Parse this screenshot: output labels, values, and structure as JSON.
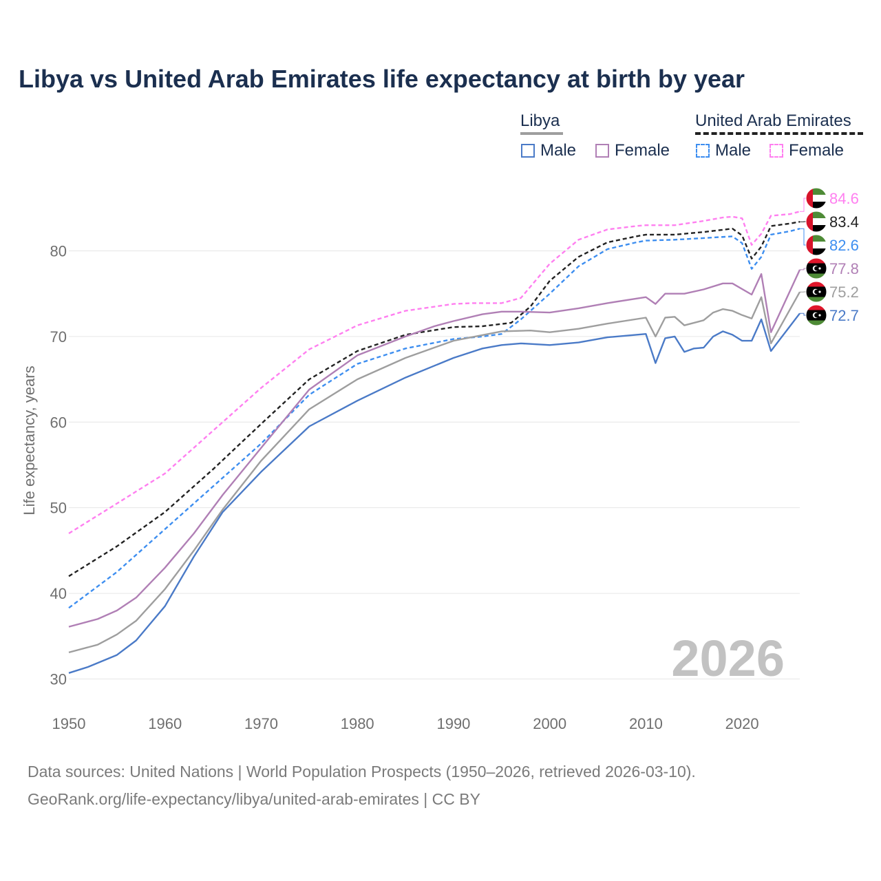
{
  "title": "Libya vs United Arab Emirates life expectancy at birth by year",
  "legend": {
    "group1": "Libya",
    "group2": "United Arab Emirates",
    "male": "Male",
    "female": "Female"
  },
  "year_watermark": "2026",
  "footer": {
    "line1": "Data sources: United Nations | World Population Prospects (1950–2026, retrieved 2026-03-10).",
    "line2": "GeoRank.org/life-expectancy/libya/united-arab-emirates | CC BY"
  },
  "colors": {
    "libya_total": "#9e9e9e",
    "libya_male": "#4a7ac7",
    "libya_female": "#b07fb5",
    "uae_total": "#222222",
    "uae_male": "#3d8ef0",
    "uae_female": "#ff7ff0"
  },
  "chart_data": {
    "type": "line",
    "title": "Libya vs United Arab Emirates life expectancy at birth by year",
    "xlabel": "",
    "ylabel": "Life expectancy, years",
    "xlim": [
      1950,
      2026
    ],
    "ylim": [
      26.5,
      88
    ],
    "xticks": [
      1950,
      1960,
      1970,
      1980,
      1990,
      2000,
      2010,
      2020
    ],
    "yticks": [
      30,
      40,
      50,
      60,
      70,
      80
    ],
    "grid": true,
    "series": [
      {
        "key": "uae_female",
        "name": "United Arab Emirates Female",
        "dashed": true,
        "end_label": "84.6",
        "points": [
          [
            1950,
            47.0
          ],
          [
            1955,
            50.5
          ],
          [
            1960,
            54.0
          ],
          [
            1965,
            59.0
          ],
          [
            1970,
            64.0
          ],
          [
            1975,
            68.5
          ],
          [
            1980,
            71.3
          ],
          [
            1985,
            73.0
          ],
          [
            1990,
            73.8
          ],
          [
            1992,
            73.9
          ],
          [
            1995,
            73.9
          ],
          [
            1997,
            74.5
          ],
          [
            2000,
            78.5
          ],
          [
            2003,
            81.3
          ],
          [
            2006,
            82.5
          ],
          [
            2009,
            82.9
          ],
          [
            2010,
            83.0
          ],
          [
            2013,
            83.0
          ],
          [
            2016,
            83.5
          ],
          [
            2018,
            83.9
          ],
          [
            2019,
            84.0
          ],
          [
            2020,
            83.8
          ],
          [
            2021,
            80.7
          ],
          [
            2022,
            82.0
          ],
          [
            2023,
            84.1
          ],
          [
            2025,
            84.3
          ],
          [
            2026,
            84.6
          ]
        ]
      },
      {
        "key": "uae_total",
        "name": "United Arab Emirates",
        "dashed": true,
        "end_label": "83.4",
        "points": [
          [
            1950,
            42.0
          ],
          [
            1955,
            45.5
          ],
          [
            1960,
            49.5
          ],
          [
            1965,
            54.5
          ],
          [
            1970,
            59.8
          ],
          [
            1975,
            65.0
          ],
          [
            1980,
            68.3
          ],
          [
            1985,
            70.2
          ],
          [
            1990,
            71.1
          ],
          [
            1993,
            71.2
          ],
          [
            1996,
            71.6
          ],
          [
            1998,
            73.5
          ],
          [
            2000,
            76.5
          ],
          [
            2003,
            79.3
          ],
          [
            2006,
            81.0
          ],
          [
            2009,
            81.7
          ],
          [
            2010,
            81.9
          ],
          [
            2013,
            81.9
          ],
          [
            2016,
            82.2
          ],
          [
            2019,
            82.6
          ],
          [
            2020,
            81.8
          ],
          [
            2021,
            79.1
          ],
          [
            2022,
            80.5
          ],
          [
            2023,
            82.9
          ],
          [
            2025,
            83.2
          ],
          [
            2026,
            83.4
          ]
        ]
      },
      {
        "key": "uae_male",
        "name": "United Arab Emirates Male",
        "dashed": true,
        "end_label": "82.6",
        "points": [
          [
            1950,
            38.3
          ],
          [
            1955,
            42.5
          ],
          [
            1960,
            47.5
          ],
          [
            1965,
            52.5
          ],
          [
            1970,
            57.5
          ],
          [
            1975,
            63.2
          ],
          [
            1980,
            66.8
          ],
          [
            1985,
            68.6
          ],
          [
            1990,
            69.7
          ],
          [
            1993,
            70.0
          ],
          [
            1995,
            70.3
          ],
          [
            1997,
            72.0
          ],
          [
            2000,
            75.0
          ],
          [
            2003,
            78.2
          ],
          [
            2006,
            80.2
          ],
          [
            2009,
            81.0
          ],
          [
            2010,
            81.2
          ],
          [
            2013,
            81.3
          ],
          [
            2016,
            81.5
          ],
          [
            2019,
            81.7
          ],
          [
            2020,
            80.9
          ],
          [
            2021,
            77.9
          ],
          [
            2022,
            79.3
          ],
          [
            2023,
            81.9
          ],
          [
            2025,
            82.3
          ],
          [
            2026,
            82.6
          ]
        ]
      },
      {
        "key": "libya_female",
        "name": "Libya Female",
        "dashed": false,
        "end_label": "77.8",
        "points": [
          [
            1950,
            36.1
          ],
          [
            1953,
            37.0
          ],
          [
            1955,
            38.0
          ],
          [
            1957,
            39.5
          ],
          [
            1960,
            43.0
          ],
          [
            1963,
            47.0
          ],
          [
            1966,
            51.5
          ],
          [
            1970,
            57.0
          ],
          [
            1975,
            63.8
          ],
          [
            1980,
            67.8
          ],
          [
            1985,
            70.0
          ],
          [
            1988,
            71.2
          ],
          [
            1990,
            71.8
          ],
          [
            1993,
            72.6
          ],
          [
            1995,
            72.9
          ],
          [
            1997,
            72.9
          ],
          [
            2000,
            72.8
          ],
          [
            2003,
            73.3
          ],
          [
            2006,
            73.9
          ],
          [
            2010,
            74.6
          ],
          [
            2011,
            73.8
          ],
          [
            2012,
            75.0
          ],
          [
            2014,
            75.0
          ],
          [
            2016,
            75.5
          ],
          [
            2018,
            76.2
          ],
          [
            2019,
            76.2
          ],
          [
            2021,
            74.9
          ],
          [
            2022,
            77.3
          ],
          [
            2023,
            70.5
          ],
          [
            2026,
            77.8
          ]
        ]
      },
      {
        "key": "libya_total",
        "name": "Libya",
        "dashed": false,
        "end_label": "75.2",
        "points": [
          [
            1950,
            33.1
          ],
          [
            1953,
            34.0
          ],
          [
            1955,
            35.2
          ],
          [
            1957,
            36.8
          ],
          [
            1960,
            40.5
          ],
          [
            1963,
            45.0
          ],
          [
            1966,
            49.8
          ],
          [
            1970,
            55.5
          ],
          [
            1975,
            61.5
          ],
          [
            1980,
            65.0
          ],
          [
            1985,
            67.5
          ],
          [
            1990,
            69.5
          ],
          [
            1995,
            70.6
          ],
          [
            1998,
            70.7
          ],
          [
            2000,
            70.5
          ],
          [
            2003,
            70.9
          ],
          [
            2006,
            71.5
          ],
          [
            2010,
            72.2
          ],
          [
            2011,
            70.0
          ],
          [
            2012,
            72.2
          ],
          [
            2013,
            72.3
          ],
          [
            2014,
            71.3
          ],
          [
            2016,
            71.9
          ],
          [
            2017,
            72.8
          ],
          [
            2018,
            73.2
          ],
          [
            2019,
            73.0
          ],
          [
            2020,
            72.5
          ],
          [
            2021,
            72.1
          ],
          [
            2022,
            74.6
          ],
          [
            2023,
            69.2
          ],
          [
            2026,
            75.2
          ]
        ]
      },
      {
        "key": "libya_male",
        "name": "Libya Male",
        "dashed": false,
        "end_label": "72.7",
        "points": [
          [
            1950,
            30.7
          ],
          [
            1952,
            31.4
          ],
          [
            1955,
            32.8
          ],
          [
            1957,
            34.5
          ],
          [
            1960,
            38.5
          ],
          [
            1963,
            44.3
          ],
          [
            1966,
            49.5
          ],
          [
            1970,
            54.2
          ],
          [
            1975,
            59.5
          ],
          [
            1980,
            62.5
          ],
          [
            1985,
            65.2
          ],
          [
            1990,
            67.5
          ],
          [
            1993,
            68.6
          ],
          [
            1995,
            69.0
          ],
          [
            1997,
            69.2
          ],
          [
            2000,
            69.0
          ],
          [
            2003,
            69.3
          ],
          [
            2006,
            69.9
          ],
          [
            2010,
            70.3
          ],
          [
            2011,
            66.9
          ],
          [
            2012,
            69.8
          ],
          [
            2013,
            70.0
          ],
          [
            2014,
            68.2
          ],
          [
            2015,
            68.6
          ],
          [
            2016,
            68.7
          ],
          [
            2017,
            70.0
          ],
          [
            2018,
            70.6
          ],
          [
            2019,
            70.2
          ],
          [
            2020,
            69.5
          ],
          [
            2021,
            69.5
          ],
          [
            2022,
            72.0
          ],
          [
            2023,
            68.3
          ],
          [
            2026,
            72.7
          ]
        ]
      }
    ]
  }
}
